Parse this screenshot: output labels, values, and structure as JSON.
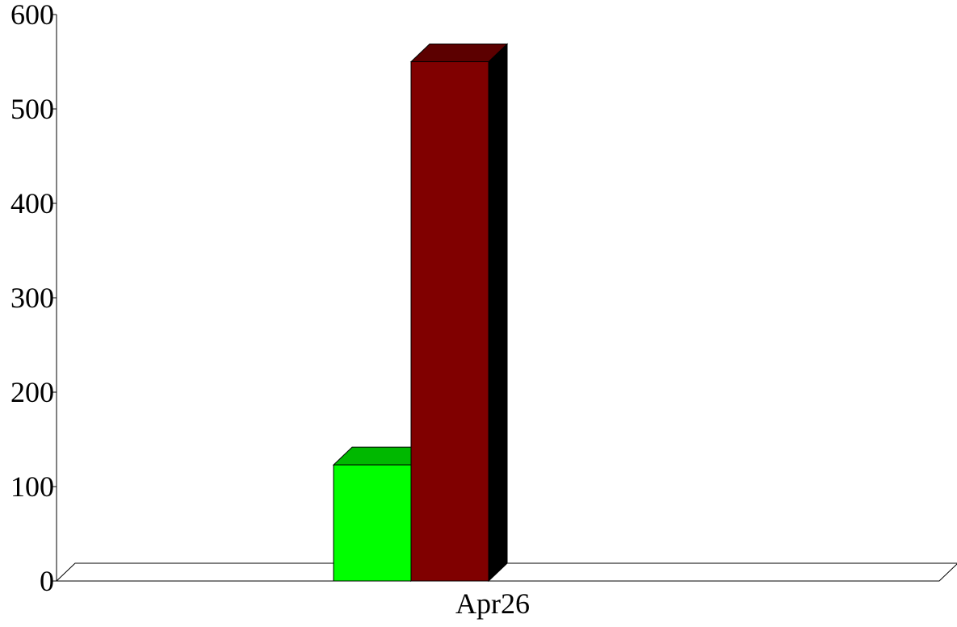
{
  "chart_data": {
    "type": "bar",
    "categories": [
      "Apr26"
    ],
    "series": [
      {
        "values": [
          123
        ],
        "color": "#00ff00"
      },
      {
        "values": [
          550
        ],
        "color": "#800000"
      }
    ],
    "ylim": [
      0,
      600
    ],
    "yticks": [
      "0",
      "100",
      "200",
      "300",
      "400",
      "500",
      "600"
    ],
    "grid": false,
    "three_d": true,
    "background": "#ffffff"
  }
}
